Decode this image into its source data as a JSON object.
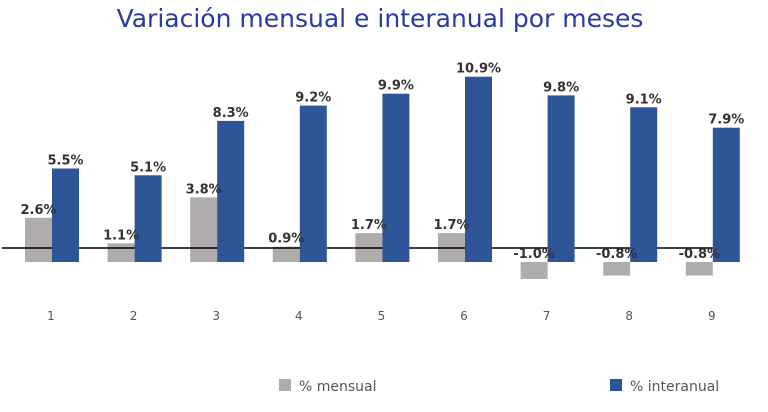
{
  "chart_data": {
    "type": "bar",
    "title": "Variación mensual e interanual por meses",
    "xlabel": "",
    "ylabel": "",
    "categories": [
      "1",
      "2",
      "3",
      "4",
      "5",
      "6",
      "7",
      "8",
      "9"
    ],
    "series": [
      {
        "name": "% mensual",
        "color": "#B0ACAC",
        "values": [
          2.6,
          1.1,
          3.8,
          0.9,
          1.7,
          1.7,
          -1.0,
          -0.8,
          -0.8
        ],
        "labels": [
          "2.6%",
          "1.1%",
          "3.8%",
          "0.9%",
          "1.7%",
          "1.7%",
          "-1.0%",
          "-0.8%",
          "-0.8%"
        ]
      },
      {
        "name": "% interanual",
        "color": "#2E5597",
        "values": [
          5.5,
          5.1,
          8.3,
          9.2,
          9.9,
          10.9,
          9.8,
          9.1,
          7.9
        ],
        "labels": [
          "5.5%",
          "5.1%",
          "8.3%",
          "9.2%",
          "9.9%",
          "10.9%",
          "9.8%",
          "9.1%",
          "7.9%"
        ]
      }
    ],
    "ylim": [
      -1.5,
      11.5
    ],
    "grid": false,
    "legend": "bottom"
  }
}
